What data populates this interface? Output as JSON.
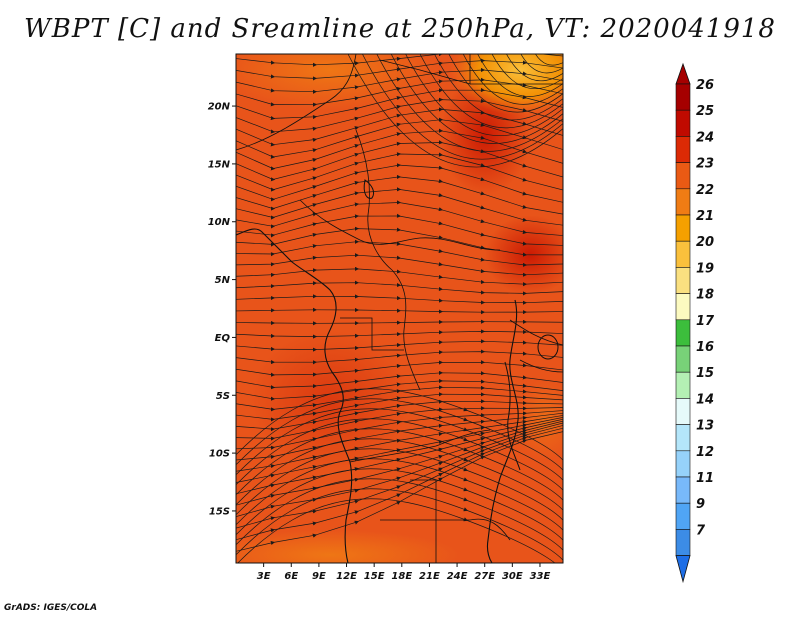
{
  "title": "WBPT [C] and Sreamline at 250hPa, VT: 2020041918",
  "credit": "GrADS: IGES/COLA",
  "map": {
    "lon_range": [
      0,
      35.5
    ],
    "lat_range": [
      -19.5,
      24.5
    ],
    "lat_ticks": [
      {
        "value": 20,
        "label": "20N"
      },
      {
        "value": 15,
        "label": "15N"
      },
      {
        "value": 10,
        "label": "10N"
      },
      {
        "value": 5,
        "label": "5N"
      },
      {
        "value": 0,
        "label": "EQ"
      },
      {
        "value": -5,
        "label": "5S"
      },
      {
        "value": -10,
        "label": "10S"
      },
      {
        "value": -15,
        "label": "15S"
      }
    ],
    "lon_ticks": [
      {
        "value": 3,
        "label": "3E"
      },
      {
        "value": 6,
        "label": "6E"
      },
      {
        "value": 9,
        "label": "9E"
      },
      {
        "value": 12,
        "label": "12E"
      },
      {
        "value": 15,
        "label": "15E"
      },
      {
        "value": 18,
        "label": "18E"
      },
      {
        "value": 21,
        "label": "21E"
      },
      {
        "value": 24,
        "label": "24E"
      },
      {
        "value": 27,
        "label": "27E"
      },
      {
        "value": 30,
        "label": "30E"
      },
      {
        "value": 33,
        "label": "33E"
      }
    ],
    "base_color": "#e8541a",
    "streamline_color": "#1a1a1a"
  },
  "colorbar": {
    "levels": [
      {
        "label": "26",
        "color": "#a50000"
      },
      {
        "label": "25",
        "color": "#c00a00"
      },
      {
        "label": "24",
        "color": "#dc2a05"
      },
      {
        "label": "23",
        "color": "#ea5a14"
      },
      {
        "label": "22",
        "color": "#f07c14"
      },
      {
        "label": "21",
        "color": "#f5a000"
      },
      {
        "label": "20",
        "color": "#fac03c"
      },
      {
        "label": "19",
        "color": "#fae080"
      },
      {
        "label": "18",
        "color": "#fcfac0"
      },
      {
        "label": "17",
        "color": "#3cbe3c"
      },
      {
        "label": "16",
        "color": "#78d278"
      },
      {
        "label": "15",
        "color": "#b4f0b4"
      },
      {
        "label": "14",
        "color": "#e6fafa"
      },
      {
        "label": "13",
        "color": "#b4e6fa"
      },
      {
        "label": "12",
        "color": "#96d2fa"
      },
      {
        "label": "11",
        "color": "#78b9fa"
      },
      {
        "label": "9",
        "color": "#50a5f5"
      },
      {
        "label": "7",
        "color": "#3c8ce6"
      }
    ],
    "bottom_color": "#1e6ee6"
  }
}
